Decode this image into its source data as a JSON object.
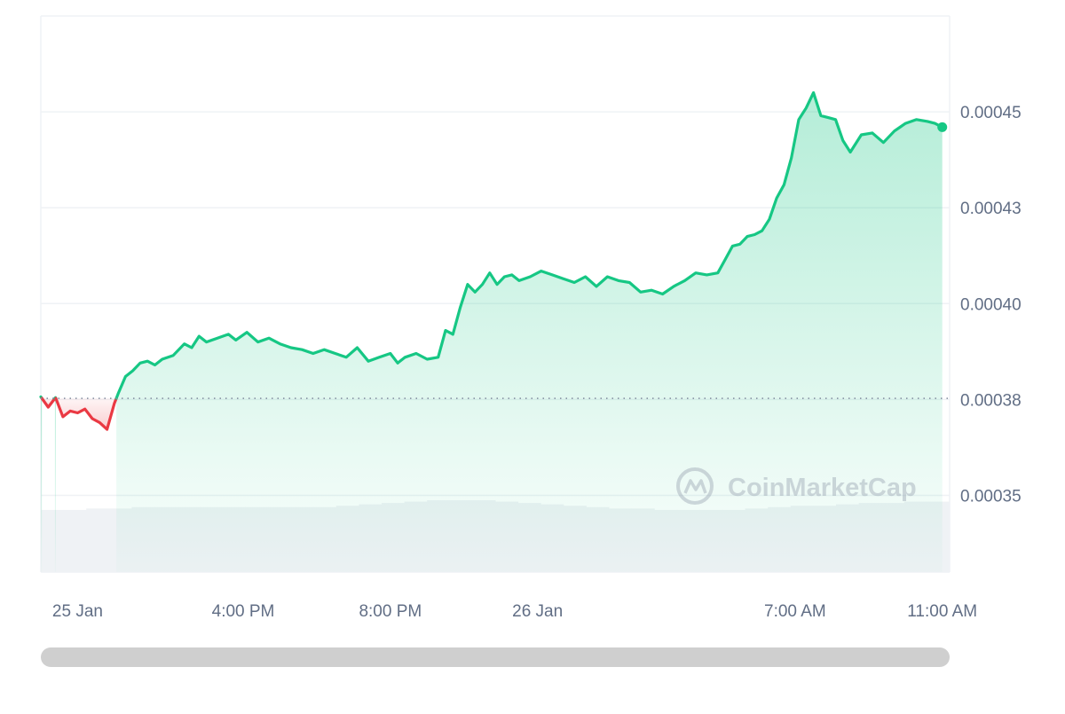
{
  "chart_data": {
    "type": "area",
    "y_ticks": [
      "0.00035",
      "0.00038",
      "0.00040",
      "0.00043",
      "0.00045"
    ],
    "y_tick_values": [
      0.00035,
      0.000375,
      0.0004,
      0.000425,
      0.00045
    ],
    "x_ticks": [
      {
        "label": "25 Jan",
        "t": 0
      },
      {
        "label": "4:00 PM",
        "t": 4.5
      },
      {
        "label": "8:00 PM",
        "t": 8.5
      },
      {
        "label": "26 Jan",
        "t": 12.5
      },
      {
        "label": "7:00 AM",
        "t": 19.5
      },
      {
        "label": "11:00 AM",
        "t": 23.5
      }
    ],
    "ylim": [
      0.00033,
      0.000475
    ],
    "xlim": [
      -1,
      23.7
    ],
    "baseline": 0.0003753,
    "grid": true,
    "colors": {
      "up": "#16c784",
      "down": "#ea3943",
      "volume": "#eff2f5"
    },
    "price": [
      [
        -1.0,
        0.0003757
      ],
      [
        -0.8,
        0.000373
      ],
      [
        -0.6,
        0.0003755
      ],
      [
        -0.4,
        0.0003705
      ],
      [
        -0.2,
        0.000372
      ],
      [
        0.0,
        0.0003715
      ],
      [
        0.2,
        0.0003725
      ],
      [
        0.4,
        0.00037
      ],
      [
        0.6,
        0.000369
      ],
      [
        0.8,
        0.0003672
      ],
      [
        1.0,
        0.000374
      ],
      [
        1.1,
        0.0003765
      ],
      [
        1.3,
        0.000381
      ],
      [
        1.5,
        0.0003825
      ],
      [
        1.7,
        0.0003845
      ],
      [
        1.9,
        0.000385
      ],
      [
        2.1,
        0.000384
      ],
      [
        2.3,
        0.0003855
      ],
      [
        2.6,
        0.0003865
      ],
      [
        2.9,
        0.0003895
      ],
      [
        3.1,
        0.0003885
      ],
      [
        3.3,
        0.0003915
      ],
      [
        3.5,
        0.00039
      ],
      [
        3.8,
        0.000391
      ],
      [
        4.1,
        0.000392
      ],
      [
        4.3,
        0.0003905
      ],
      [
        4.6,
        0.0003925
      ],
      [
        4.9,
        0.00039
      ],
      [
        5.2,
        0.000391
      ],
      [
        5.5,
        0.0003895
      ],
      [
        5.8,
        0.0003885
      ],
      [
        6.1,
        0.000388
      ],
      [
        6.4,
        0.000387
      ],
      [
        6.7,
        0.000388
      ],
      [
        7.0,
        0.000387
      ],
      [
        7.3,
        0.000386
      ],
      [
        7.6,
        0.0003885
      ],
      [
        7.9,
        0.000385
      ],
      [
        8.2,
        0.000386
      ],
      [
        8.5,
        0.000387
      ],
      [
        8.7,
        0.0003845
      ],
      [
        8.9,
        0.000386
      ],
      [
        9.2,
        0.000387
      ],
      [
        9.5,
        0.0003855
      ],
      [
        9.8,
        0.000386
      ],
      [
        10.0,
        0.000393
      ],
      [
        10.2,
        0.000392
      ],
      [
        10.4,
        0.000399
      ],
      [
        10.6,
        0.000405
      ],
      [
        10.8,
        0.000403
      ],
      [
        11.0,
        0.000405
      ],
      [
        11.2,
        0.000408
      ],
      [
        11.4,
        0.000405
      ],
      [
        11.6,
        0.000407
      ],
      [
        11.8,
        0.0004075
      ],
      [
        12.0,
        0.000406
      ],
      [
        12.3,
        0.000407
      ],
      [
        12.6,
        0.0004085
      ],
      [
        12.9,
        0.0004075
      ],
      [
        13.2,
        0.0004065
      ],
      [
        13.5,
        0.0004055
      ],
      [
        13.8,
        0.000407
      ],
      [
        14.1,
        0.0004045
      ],
      [
        14.4,
        0.000407
      ],
      [
        14.7,
        0.000406
      ],
      [
        15.0,
        0.0004055
      ],
      [
        15.3,
        0.000403
      ],
      [
        15.6,
        0.0004035
      ],
      [
        15.9,
        0.0004025
      ],
      [
        16.2,
        0.0004045
      ],
      [
        16.5,
        0.000406
      ],
      [
        16.8,
        0.000408
      ],
      [
        17.1,
        0.0004075
      ],
      [
        17.4,
        0.000408
      ],
      [
        17.6,
        0.0004115
      ],
      [
        17.8,
        0.000415
      ],
      [
        18.0,
        0.0004155
      ],
      [
        18.2,
        0.0004175
      ],
      [
        18.4,
        0.000418
      ],
      [
        18.6,
        0.000419
      ],
      [
        18.8,
        0.000422
      ],
      [
        19.0,
        0.0004275
      ],
      [
        19.2,
        0.000431
      ],
      [
        19.4,
        0.000438
      ],
      [
        19.6,
        0.000448
      ],
      [
        19.8,
        0.000451
      ],
      [
        20.0,
        0.000455
      ],
      [
        20.2,
        0.000449
      ],
      [
        20.4,
        0.0004485
      ],
      [
        20.6,
        0.000448
      ],
      [
        20.8,
        0.0004425
      ],
      [
        21.0,
        0.0004395
      ],
      [
        21.3,
        0.000444
      ],
      [
        21.6,
        0.0004445
      ],
      [
        21.9,
        0.000442
      ],
      [
        22.2,
        0.000445
      ],
      [
        22.5,
        0.000447
      ],
      [
        22.8,
        0.000448
      ],
      [
        23.1,
        0.0004475
      ],
      [
        23.3,
        0.000447
      ],
      [
        23.5,
        0.000446
      ]
    ],
    "volume_level": [
      0.45,
      0.45,
      0.46,
      0.46,
      0.47,
      0.47,
      0.47,
      0.47,
      0.47,
      0.47,
      0.47,
      0.47,
      0.47,
      0.48,
      0.49,
      0.5,
      0.51,
      0.52,
      0.52,
      0.52,
      0.51,
      0.5,
      0.49,
      0.48,
      0.47,
      0.46,
      0.46,
      0.45,
      0.45,
      0.45,
      0.45,
      0.46,
      0.47,
      0.48,
      0.48,
      0.49,
      0.5,
      0.5,
      0.51,
      0.51
    ]
  },
  "watermark": {
    "text": "CoinMarketCap"
  },
  "scrollbar": {
    "label": ""
  }
}
